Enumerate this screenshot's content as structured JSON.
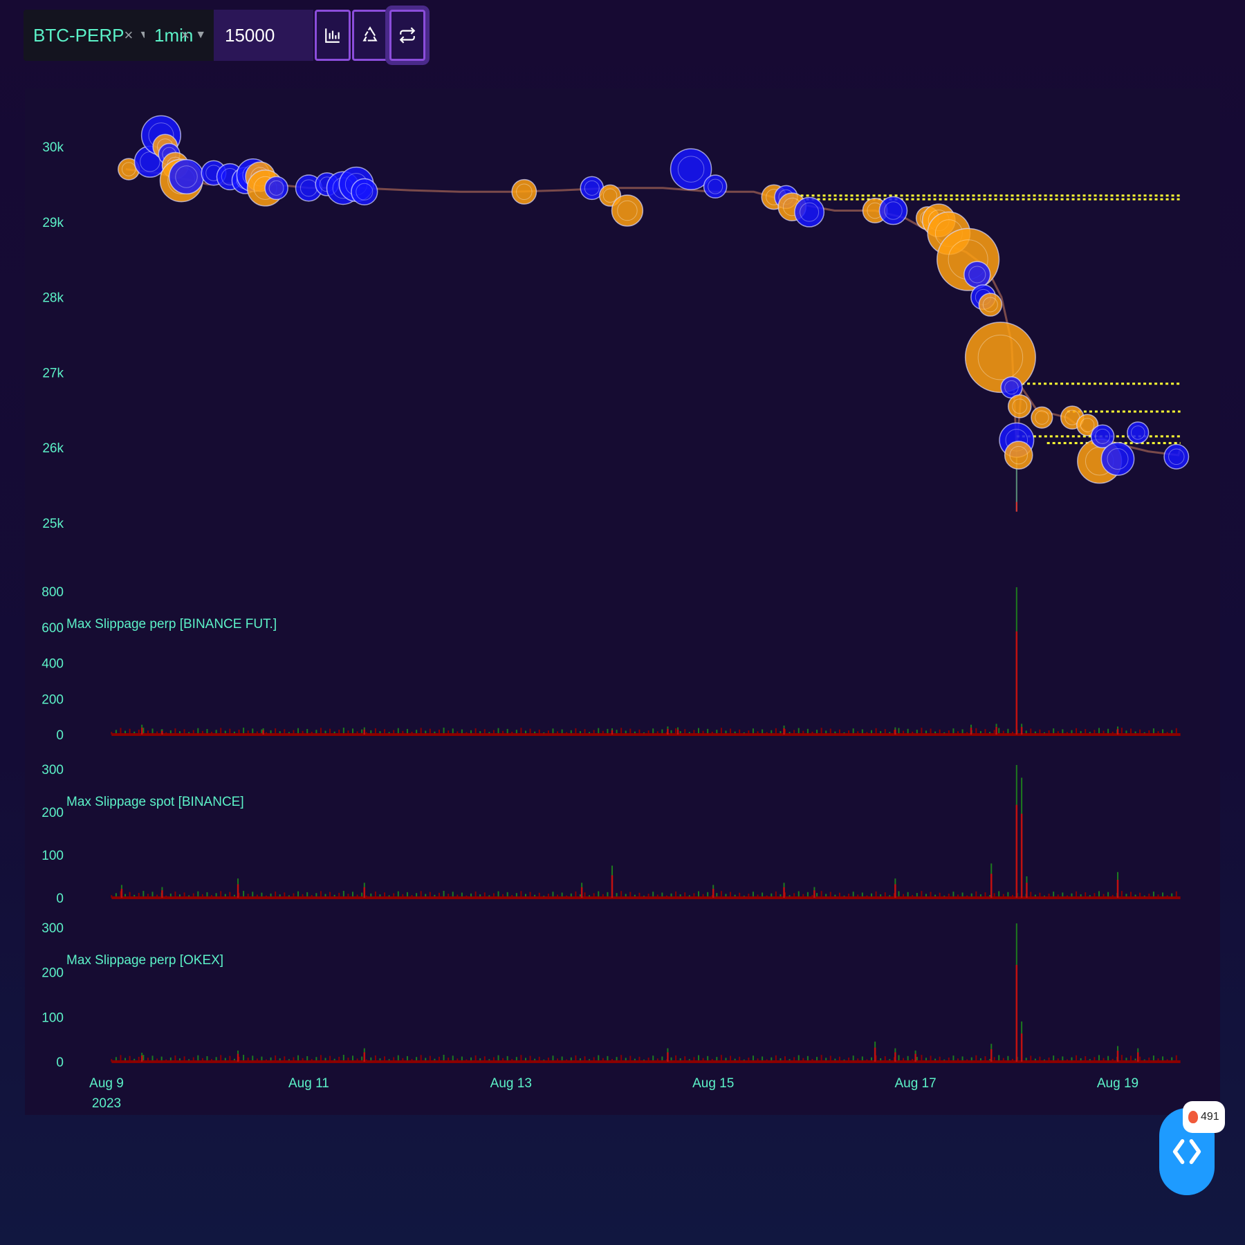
{
  "toolbar": {
    "symbol": "BTC-PERP",
    "interval": "1min",
    "quantity": "15000",
    "buttons": [
      "bar-chart-icon",
      "recycle-icon",
      "repeat-icon"
    ]
  },
  "notification": {
    "count": "491"
  },
  "colors": {
    "buy": "#1515ff",
    "sell": "#ffa010",
    "level": "#ffff33",
    "axis_text": "#5cf2c8",
    "bar_red": "#8b0000",
    "bar_green": "#1e7a1e"
  },
  "chart_data": {
    "type": "bubble-candlestick-multi-panel",
    "x_ticks": [
      {
        "t": 0,
        "label": "Aug 9",
        "sub": "2023"
      },
      {
        "t": 2,
        "label": "Aug 11"
      },
      {
        "t": 4,
        "label": "Aug 13"
      },
      {
        "t": 6,
        "label": "Aug 15"
      },
      {
        "t": 8,
        "label": "Aug 17"
      },
      {
        "t": 10,
        "label": "Aug 19"
      }
    ],
    "x_range": [
      0,
      11.0
    ],
    "price_panel": {
      "ylim": [
        24600,
        30800
      ],
      "y_ticks": [
        {
          "v": 30000,
          "label": "30k"
        },
        {
          "v": 29000,
          "label": "29k"
        },
        {
          "v": 28000,
          "label": "28k"
        },
        {
          "v": 27000,
          "label": "27k"
        },
        {
          "v": 26000,
          "label": "26k"
        },
        {
          "v": 25000,
          "label": "25k"
        }
      ],
      "price_line": [
        [
          0.19,
          29700
        ],
        [
          0.5,
          29650
        ],
        [
          1.0,
          29500
        ],
        [
          1.5,
          29520
        ],
        [
          2.0,
          29450
        ],
        [
          2.5,
          29450
        ],
        [
          3.0,
          29420
        ],
        [
          3.5,
          29400
        ],
        [
          4.0,
          29400
        ],
        [
          4.5,
          29420
        ],
        [
          5.0,
          29450
        ],
        [
          5.5,
          29450
        ],
        [
          6.0,
          29400
        ],
        [
          6.4,
          29400
        ],
        [
          6.8,
          29250
        ],
        [
          7.2,
          29150
        ],
        [
          7.6,
          29150
        ],
        [
          7.9,
          29050
        ],
        [
          8.1,
          28900
        ],
        [
          8.3,
          28700
        ],
        [
          8.5,
          28600
        ],
        [
          8.7,
          28400
        ],
        [
          8.85,
          28000
        ],
        [
          8.95,
          27400
        ],
        [
          9.0,
          26000
        ],
        [
          9.05,
          26800
        ],
        [
          9.2,
          26500
        ],
        [
          9.5,
          26400
        ],
        [
          9.7,
          26200
        ],
        [
          10.0,
          26050
        ],
        [
          10.3,
          25950
        ],
        [
          10.6,
          25900
        ],
        [
          10.62,
          26000
        ]
      ],
      "wick": {
        "t": 9.0,
        "low": 25150,
        "high": 26100
      },
      "levels": [
        {
          "from": 6.7,
          "to": 10.62,
          "price": 29350
        },
        {
          "from": 6.7,
          "to": 10.62,
          "price": 29300
        },
        {
          "from": 9.05,
          "to": 10.62,
          "price": 26850
        },
        {
          "from": 9.5,
          "to": 10.62,
          "price": 26480
        },
        {
          "from": 9.0,
          "to": 10.62,
          "price": 26150
        },
        {
          "from": 9.3,
          "to": 10.62,
          "price": 26060
        }
      ],
      "bubbles": [
        {
          "t": 0.22,
          "p": 29700,
          "r": 13,
          "side": "sell"
        },
        {
          "t": 0.43,
          "p": 29800,
          "r": 19,
          "side": "buy"
        },
        {
          "t": 0.54,
          "p": 30150,
          "r": 24,
          "side": "buy"
        },
        {
          "t": 0.58,
          "p": 30000,
          "r": 15,
          "side": "sell"
        },
        {
          "t": 0.62,
          "p": 29900,
          "r": 13,
          "side": "buy"
        },
        {
          "t": 0.68,
          "p": 29750,
          "r": 16,
          "side": "sell"
        },
        {
          "t": 0.74,
          "p": 29550,
          "r": 26,
          "side": "sell"
        },
        {
          "t": 0.79,
          "p": 29600,
          "r": 21,
          "side": "buy"
        },
        {
          "t": 1.06,
          "p": 29650,
          "r": 15,
          "side": "buy"
        },
        {
          "t": 1.22,
          "p": 29600,
          "r": 16,
          "side": "buy"
        },
        {
          "t": 1.37,
          "p": 29550,
          "r": 16,
          "side": "buy"
        },
        {
          "t": 1.45,
          "p": 29620,
          "r": 20,
          "side": "buy"
        },
        {
          "t": 1.52,
          "p": 29600,
          "r": 18,
          "side": "sell"
        },
        {
          "t": 1.57,
          "p": 29450,
          "r": 22,
          "side": "sell"
        },
        {
          "t": 1.68,
          "p": 29450,
          "r": 14,
          "side": "buy"
        },
        {
          "t": 2.0,
          "p": 29450,
          "r": 16,
          "side": "buy"
        },
        {
          "t": 2.18,
          "p": 29500,
          "r": 14,
          "side": "buy"
        },
        {
          "t": 2.34,
          "p": 29450,
          "r": 20,
          "side": "buy"
        },
        {
          "t": 2.47,
          "p": 29500,
          "r": 21,
          "side": "buy"
        },
        {
          "t": 2.55,
          "p": 29400,
          "r": 16,
          "side": "buy"
        },
        {
          "t": 4.13,
          "p": 29400,
          "r": 15,
          "side": "sell"
        },
        {
          "t": 4.8,
          "p": 29450,
          "r": 14,
          "side": "buy"
        },
        {
          "t": 4.98,
          "p": 29350,
          "r": 13,
          "side": "sell"
        },
        {
          "t": 5.15,
          "p": 29150,
          "r": 19,
          "side": "sell"
        },
        {
          "t": 5.78,
          "p": 29700,
          "r": 25,
          "side": "buy"
        },
        {
          "t": 6.02,
          "p": 29470,
          "r": 14,
          "side": "buy"
        },
        {
          "t": 6.6,
          "p": 29330,
          "r": 15,
          "side": "sell"
        },
        {
          "t": 6.72,
          "p": 29330,
          "r": 14,
          "side": "buy"
        },
        {
          "t": 6.78,
          "p": 29200,
          "r": 17,
          "side": "sell"
        },
        {
          "t": 6.95,
          "p": 29130,
          "r": 18,
          "side": "buy"
        },
        {
          "t": 7.6,
          "p": 29150,
          "r": 15,
          "side": "sell"
        },
        {
          "t": 7.78,
          "p": 29150,
          "r": 17,
          "side": "buy"
        },
        {
          "t": 8.12,
          "p": 29050,
          "r": 14,
          "side": "sell"
        },
        {
          "t": 8.23,
          "p": 29020,
          "r": 20,
          "side": "sell"
        },
        {
          "t": 8.33,
          "p": 28850,
          "r": 26,
          "side": "sell"
        },
        {
          "t": 8.52,
          "p": 28500,
          "r": 38,
          "side": "sell"
        },
        {
          "t": 8.61,
          "p": 28300,
          "r": 16,
          "side": "buy"
        },
        {
          "t": 8.67,
          "p": 28000,
          "r": 15,
          "side": "buy"
        },
        {
          "t": 8.74,
          "p": 27900,
          "r": 14,
          "side": "sell"
        },
        {
          "t": 8.84,
          "p": 27200,
          "r": 43,
          "side": "sell"
        },
        {
          "t": 8.95,
          "p": 26800,
          "r": 13,
          "side": "buy"
        },
        {
          "t": 9.03,
          "p": 26550,
          "r": 14,
          "side": "sell"
        },
        {
          "t": 9.0,
          "p": 26100,
          "r": 21,
          "side": "buy"
        },
        {
          "t": 9.02,
          "p": 25900,
          "r": 17,
          "side": "sell"
        },
        {
          "t": 9.25,
          "p": 26400,
          "r": 13,
          "side": "sell"
        },
        {
          "t": 9.55,
          "p": 26400,
          "r": 14,
          "side": "sell"
        },
        {
          "t": 9.7,
          "p": 26300,
          "r": 13,
          "side": "sell"
        },
        {
          "t": 9.82,
          "p": 25820,
          "r": 27,
          "side": "sell"
        },
        {
          "t": 9.85,
          "p": 26150,
          "r": 14,
          "side": "buy"
        },
        {
          "t": 10.0,
          "p": 25850,
          "r": 20,
          "side": "buy"
        },
        {
          "t": 10.2,
          "p": 26200,
          "r": 13,
          "side": "buy"
        },
        {
          "t": 10.58,
          "p": 25880,
          "r": 15,
          "side": "buy"
        }
      ]
    },
    "slippage_panels": [
      {
        "title": "Max Slippage perp [BINANCE FUT.]",
        "ylim": [
          0,
          800
        ],
        "y_ticks": [
          0,
          200,
          400,
          600,
          800
        ],
        "spikes": [
          [
            0.35,
            55
          ],
          [
            0.55,
            30
          ],
          [
            1.55,
            35
          ],
          [
            2.55,
            40
          ],
          [
            5.0,
            35
          ],
          [
            5.55,
            45
          ],
          [
            5.65,
            40
          ],
          [
            6.7,
            50
          ],
          [
            7.8,
            40
          ],
          [
            8.55,
            55
          ],
          [
            8.8,
            60
          ],
          [
            9.0,
            830
          ],
          [
            9.05,
            60
          ],
          [
            10.0,
            45
          ]
        ]
      },
      {
        "title": "Max Slippage spot [BINANCE]",
        "ylim": [
          0,
          300
        ],
        "y_ticks": [
          0,
          100,
          200,
          300
        ],
        "spikes": [
          [
            0.15,
            30
          ],
          [
            0.55,
            25
          ],
          [
            1.3,
            45
          ],
          [
            2.55,
            35
          ],
          [
            4.7,
            35
          ],
          [
            5.0,
            75
          ],
          [
            6.0,
            30
          ],
          [
            6.7,
            35
          ],
          [
            7.0,
            25
          ],
          [
            7.8,
            45
          ],
          [
            8.75,
            80
          ],
          [
            9.0,
            340
          ],
          [
            9.05,
            280
          ],
          [
            9.1,
            50
          ],
          [
            10.0,
            60
          ]
        ]
      },
      {
        "title": "Max Slippage perp [OKEX]",
        "ylim": [
          0,
          300
        ],
        "y_ticks": [
          0,
          100,
          200,
          300
        ],
        "spikes": [
          [
            0.35,
            20
          ],
          [
            1.3,
            25
          ],
          [
            2.55,
            30
          ],
          [
            5.55,
            30
          ],
          [
            7.6,
            45
          ],
          [
            7.8,
            30
          ],
          [
            8.0,
            25
          ],
          [
            8.75,
            40
          ],
          [
            9.0,
            350
          ],
          [
            9.05,
            90
          ],
          [
            10.0,
            35
          ],
          [
            10.2,
            30
          ]
        ]
      }
    ]
  }
}
